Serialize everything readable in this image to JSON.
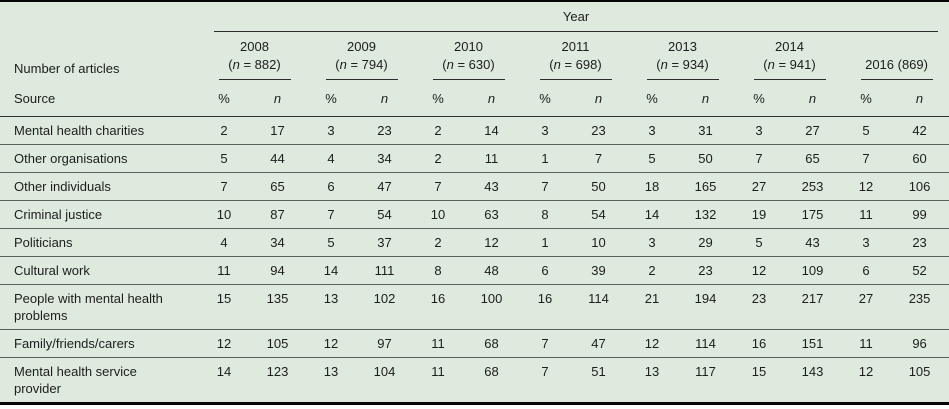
{
  "colors": {
    "table_background": "#deeadd",
    "rule_dark": "#060606",
    "rule_row": "#57615a",
    "text": "#1d1d1d"
  },
  "table": {
    "year_header": "Year",
    "corner_label": "Number of articles",
    "source_header": "Source",
    "pct_header": "%",
    "n_header": "n",
    "year_groups": [
      {
        "year": "2008",
        "n": "882"
      },
      {
        "year": "2009",
        "n": "794"
      },
      {
        "year": "2010",
        "n": "630"
      },
      {
        "year": "2011",
        "n": "698"
      },
      {
        "year": "2013",
        "n": "934"
      },
      {
        "year": "2014",
        "n": "941"
      },
      {
        "year": "2016",
        "n": "869",
        "inline": true
      }
    ],
    "rows": [
      {
        "source": "Mental health charities",
        "values": [
          [
            2,
            17
          ],
          [
            3,
            23
          ],
          [
            2,
            14
          ],
          [
            3,
            23
          ],
          [
            3,
            31
          ],
          [
            3,
            27
          ],
          [
            5,
            42
          ]
        ]
      },
      {
        "source": "Other organisations",
        "values": [
          [
            5,
            44
          ],
          [
            4,
            34
          ],
          [
            2,
            11
          ],
          [
            1,
            7
          ],
          [
            5,
            50
          ],
          [
            7,
            65
          ],
          [
            7,
            60
          ]
        ]
      },
      {
        "source": "Other individuals",
        "values": [
          [
            7,
            65
          ],
          [
            6,
            47
          ],
          [
            7,
            43
          ],
          [
            7,
            50
          ],
          [
            18,
            165
          ],
          [
            27,
            253
          ],
          [
            12,
            106
          ]
        ]
      },
      {
        "source": "Criminal justice",
        "values": [
          [
            10,
            87
          ],
          [
            7,
            54
          ],
          [
            10,
            63
          ],
          [
            8,
            54
          ],
          [
            14,
            132
          ],
          [
            19,
            175
          ],
          [
            11,
            99
          ]
        ]
      },
      {
        "source": "Politicians",
        "values": [
          [
            4,
            34
          ],
          [
            5,
            37
          ],
          [
            2,
            12
          ],
          [
            1,
            10
          ],
          [
            3,
            29
          ],
          [
            5,
            43
          ],
          [
            3,
            23
          ]
        ]
      },
      {
        "source": "Cultural work",
        "values": [
          [
            11,
            94
          ],
          [
            14,
            111
          ],
          [
            8,
            48
          ],
          [
            6,
            39
          ],
          [
            2,
            23
          ],
          [
            12,
            109
          ],
          [
            6,
            52
          ]
        ]
      },
      {
        "source": "People with mental health problems",
        "values": [
          [
            15,
            135
          ],
          [
            13,
            102
          ],
          [
            16,
            100
          ],
          [
            16,
            114
          ],
          [
            21,
            194
          ],
          [
            23,
            217
          ],
          [
            27,
            235
          ]
        ]
      },
      {
        "source": "Family/friends/carers",
        "values": [
          [
            12,
            105
          ],
          [
            12,
            97
          ],
          [
            11,
            68
          ],
          [
            7,
            47
          ],
          [
            12,
            114
          ],
          [
            16,
            151
          ],
          [
            11,
            96
          ]
        ]
      },
      {
        "source": "Mental health service provider",
        "values": [
          [
            14,
            123
          ],
          [
            13,
            104
          ],
          [
            11,
            68
          ],
          [
            7,
            51
          ],
          [
            13,
            117
          ],
          [
            15,
            143
          ],
          [
            12,
            105
          ]
        ]
      }
    ]
  }
}
